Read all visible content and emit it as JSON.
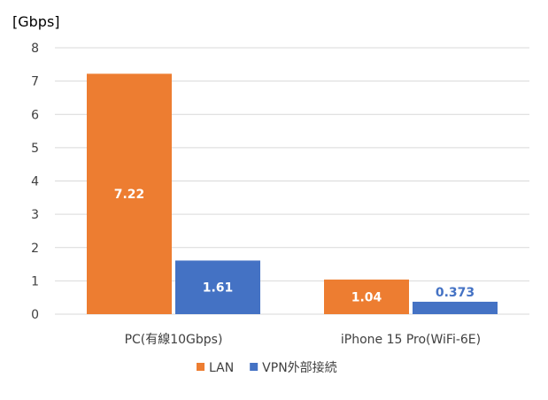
{
  "chart_data": {
    "type": "bar",
    "unit_label": "[Gbps]",
    "categories": [
      "PC(有線10Gbps)",
      "iPhone 15 Pro(WiFi-6E)"
    ],
    "series": [
      {
        "name": "LAN",
        "values": [
          7.22,
          1.04
        ],
        "labels": [
          "7.22",
          "1.04"
        ],
        "color": "#ED7D31",
        "label_color": "#ffffff"
      },
      {
        "name": "VPN外部接続",
        "values": [
          1.61,
          0.373
        ],
        "labels": [
          "1.61",
          "0.373"
        ],
        "color": "#4472C4",
        "label_color_inside": "#ffffff",
        "label_color_outside": "#4472C4"
      }
    ],
    "ylim": [
      0,
      8
    ],
    "yticks": [
      0,
      1,
      2,
      3,
      4,
      5,
      6,
      7,
      8
    ],
    "grid": true,
    "legend": "bottom",
    "gridline_color": "#D9D9D9"
  }
}
